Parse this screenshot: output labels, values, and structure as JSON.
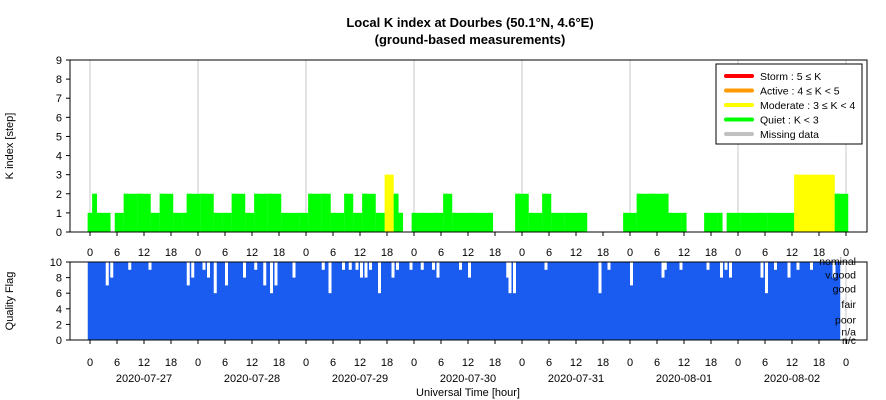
{
  "chart_data": [
    {
      "type": "bar",
      "title": "Local K index at Dourbes (50.1°N, 4.6°E)",
      "subtitle": "(ground-based measurements)",
      "ylabel": "K index [step]",
      "ylim": [
        0,
        9
      ],
      "yticks": [
        "0",
        "1",
        "2",
        "3",
        "4",
        "5",
        "6",
        "7",
        "8",
        "9"
      ],
      "grid": true,
      "legend_position": "top-right",
      "legend": [
        {
          "label": "Storm : 5 ≤ K",
          "color": "#ff0000"
        },
        {
          "label": "Active : 4 ≤ K < 5",
          "color": "#ff9900"
        },
        {
          "label": "Moderate : 3 ≤ K < 4",
          "color": "#ffff00"
        },
        {
          "label": "Quiet : K < 3",
          "color": "#00ff00"
        },
        {
          "label": "Missing data",
          "color": "#c0c0c0"
        }
      ],
      "x_unit": "hours since 2020-07-27 00:00 UT",
      "series": [
        {
          "values": [
            [
              -0.5,
              1
            ],
            [
              0.5,
              2
            ],
            [
              1.5,
              1
            ],
            [
              3.5,
              1
            ],
            [
              7.5,
              2
            ],
            [
              10.5,
              2
            ],
            [
              13.5,
              1
            ],
            [
              15.5,
              2
            ],
            [
              18.5,
              1
            ],
            [
              20.5,
              1
            ],
            [
              21.5,
              2
            ],
            [
              24.5,
              2
            ],
            [
              27.5,
              1
            ],
            [
              29.5,
              1
            ],
            [
              31.5,
              2
            ],
            [
              34.5,
              1
            ],
            [
              36.5,
              2
            ],
            [
              39.5,
              2
            ],
            [
              42.5,
              1
            ],
            [
              46.5,
              1
            ],
            [
              48.5,
              2
            ],
            [
              51.5,
              2
            ],
            [
              53.5,
              1
            ],
            [
              56.5,
              2
            ],
            [
              58.5,
              1
            ],
            [
              60.5,
              2
            ],
            [
              63.5,
              1
            ],
            [
              65.5,
              3
            ],
            [
              67.5,
              2
            ],
            [
              68.5,
              1
            ],
            [
              71.5,
              1
            ],
            [
              73.5,
              1
            ],
            [
              76.5,
              1
            ],
            [
              78.5,
              2
            ],
            [
              80.5,
              1
            ],
            [
              84.5,
              1
            ],
            [
              88.5,
              1
            ],
            [
              94.5,
              2
            ],
            [
              97.5,
              1
            ],
            [
              100.5,
              2
            ],
            [
              102.5,
              1
            ],
            [
              105.5,
              1
            ],
            [
              108.5,
              1
            ],
            [
              118.5,
              1
            ],
            [
              121.5,
              2
            ],
            [
              124.5,
              2
            ],
            [
              127.5,
              2
            ],
            [
              128.5,
              1
            ],
            [
              131.5,
              1
            ],
            [
              136.5,
              1
            ],
            [
              139.5,
              1
            ],
            [
              141.5,
              1
            ],
            [
              144.5,
              1
            ],
            [
              148.5,
              1
            ],
            [
              150.5,
              1
            ],
            [
              156.5,
              3
            ],
            [
              158.5,
              3
            ],
            [
              160.5,
              3
            ],
            [
              162.5,
              3
            ],
            [
              165.5,
              2
            ]
          ]
        }
      ],
      "colors_by_level": {
        "quiet": "#00ff00",
        "moderate": "#ffff00"
      }
    },
    {
      "type": "area",
      "ylabel": "Quality Flag",
      "xlabel": "Universal Time [hour]",
      "ylim": [
        0,
        10
      ],
      "yticks": [
        "0",
        "2",
        "4",
        "6",
        "8",
        "10"
      ],
      "quality_levels": [
        "nominal",
        "v.good",
        "good",
        "fair",
        "poor",
        "n/a",
        "n/c"
      ],
      "fill_color": "#1a5cf0",
      "hour_ticks": [
        "0",
        "6",
        "12",
        "18",
        "0",
        "6",
        "12",
        "18",
        "0",
        "6",
        "12",
        "18",
        "0",
        "6",
        "12",
        "18",
        "0",
        "6",
        "12",
        "18",
        "0",
        "6",
        "12",
        "18",
        "0",
        "6",
        "12",
        "18",
        "0"
      ],
      "dates": [
        "2020-07-27",
        "2020-07-28",
        "2020-07-29",
        "2020-07-30",
        "2020-07-31",
        "2020-08-01",
        "2020-08-02"
      ]
    }
  ]
}
